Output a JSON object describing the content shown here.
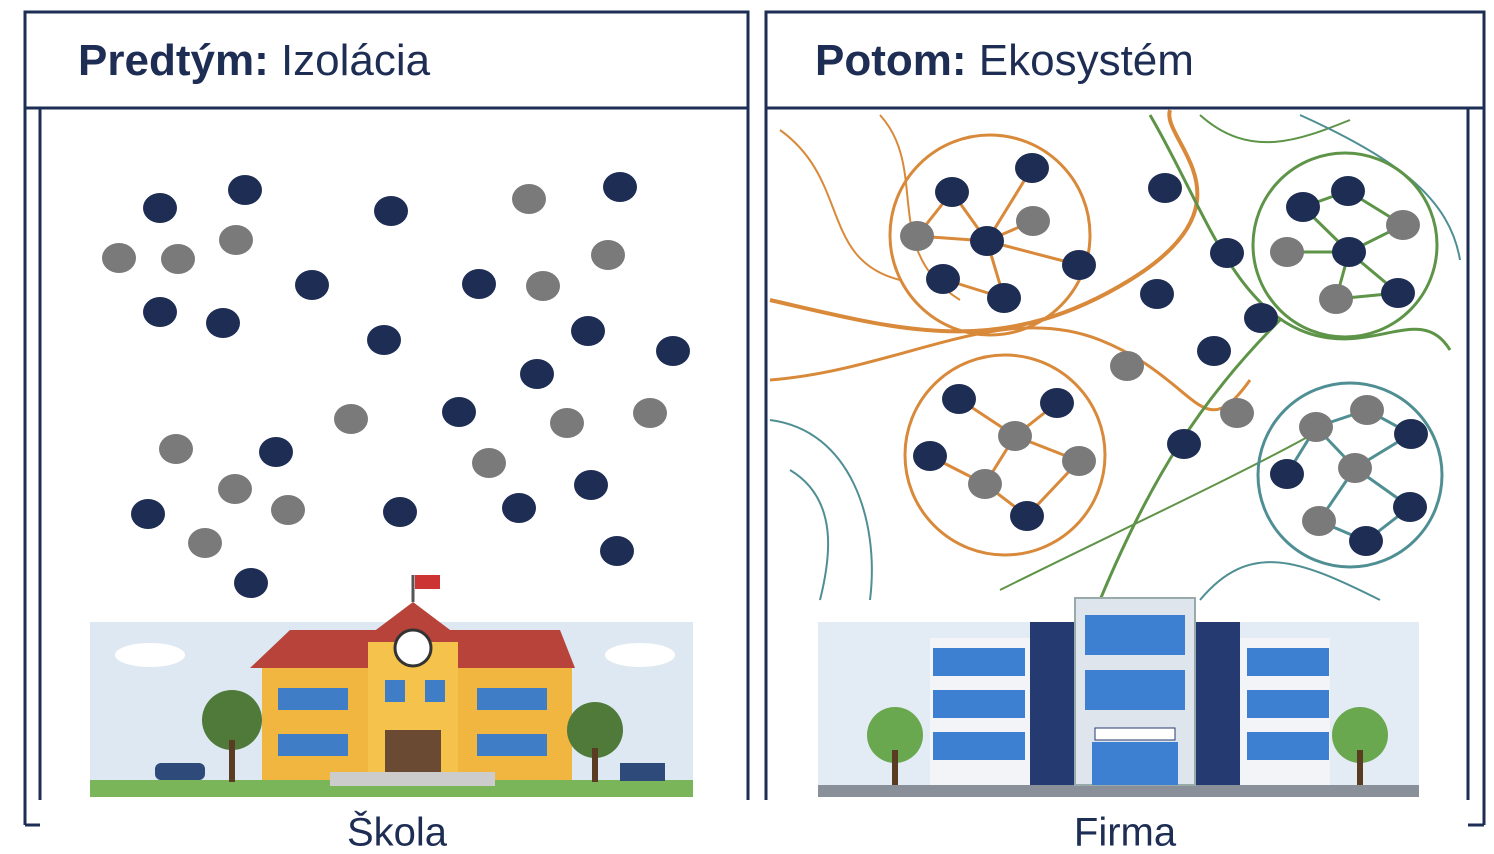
{
  "left": {
    "title_bold": "Predtým:",
    "title_rest": "Izolácia",
    "label": "Škola"
  },
  "right": {
    "title_bold": "Potom:",
    "title_rest": "Ekosystém",
    "label": "Firma"
  }
}
